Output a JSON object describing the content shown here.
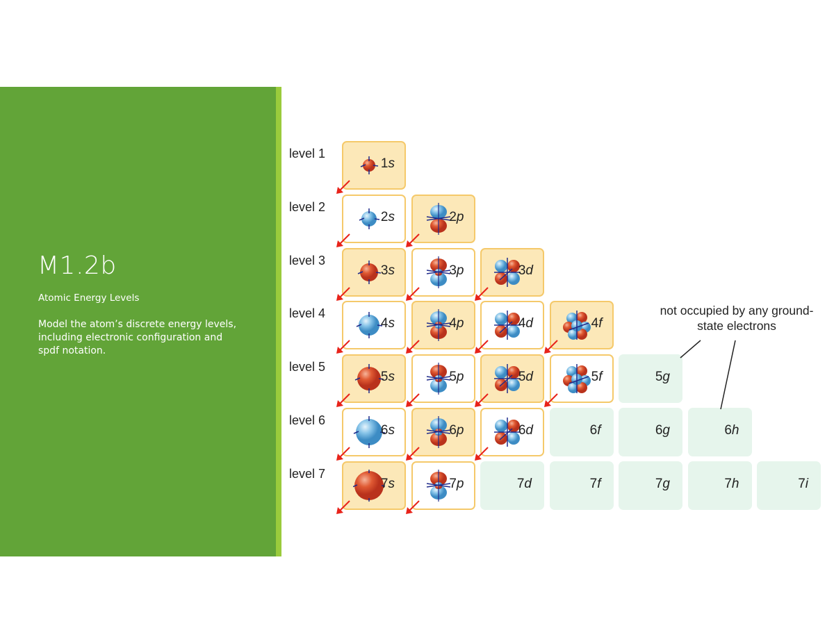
{
  "slide": {
    "title": "M1.2b",
    "subtitle": "Atomic Energy Levels",
    "description": "Model the atom’s discrete energy levels, including electronic configuration and spdf notation.",
    "colors": {
      "panel": "#62a438",
      "accent": "#9acb3c",
      "occupied": "#fce8b8",
      "occupied_border": "#f5c96a",
      "unoccupied": "#e6f5ec",
      "arrow": "#e8231a"
    }
  },
  "diagram": {
    "levels": [
      "level 1",
      "level 2",
      "level 3",
      "level 4",
      "level 5",
      "level 6",
      "level 7"
    ],
    "annotation": "not occupied by any ground-state electrons",
    "rows": [
      [
        {
          "n": "1",
          "l": "s",
          "state": "filled",
          "color": "red"
        }
      ],
      [
        {
          "n": "2",
          "l": "s",
          "state": "white",
          "color": "blue"
        },
        {
          "n": "2",
          "l": "p",
          "state": "filled",
          "color": "mixed"
        }
      ],
      [
        {
          "n": "3",
          "l": "s",
          "state": "filled",
          "color": "red"
        },
        {
          "n": "3",
          "l": "p",
          "state": "white",
          "color": "mixed"
        },
        {
          "n": "3",
          "l": "d",
          "state": "filled",
          "color": "mixed"
        }
      ],
      [
        {
          "n": "4",
          "l": "s",
          "state": "white",
          "color": "blue"
        },
        {
          "n": "4",
          "l": "p",
          "state": "filled",
          "color": "mixed"
        },
        {
          "n": "4",
          "l": "d",
          "state": "white",
          "color": "mixed"
        },
        {
          "n": "4",
          "l": "f",
          "state": "filled",
          "color": "mixed"
        }
      ],
      [
        {
          "n": "5",
          "l": "s",
          "state": "filled",
          "color": "red"
        },
        {
          "n": "5",
          "l": "p",
          "state": "white",
          "color": "mixed"
        },
        {
          "n": "5",
          "l": "d",
          "state": "filled",
          "color": "mixed"
        },
        {
          "n": "5",
          "l": "f",
          "state": "white",
          "color": "mixed"
        },
        {
          "n": "5",
          "l": "g",
          "state": "empty"
        }
      ],
      [
        {
          "n": "6",
          "l": "s",
          "state": "white",
          "color": "blue"
        },
        {
          "n": "6",
          "l": "p",
          "state": "filled",
          "color": "mixed"
        },
        {
          "n": "6",
          "l": "d",
          "state": "white",
          "color": "mixed"
        },
        {
          "n": "6",
          "l": "f",
          "state": "empty"
        },
        {
          "n": "6",
          "l": "g",
          "state": "empty"
        },
        {
          "n": "6",
          "l": "h",
          "state": "empty"
        }
      ],
      [
        {
          "n": "7",
          "l": "s",
          "state": "filled",
          "color": "red"
        },
        {
          "n": "7",
          "l": "p",
          "state": "white",
          "color": "mixed"
        },
        {
          "n": "7",
          "l": "d",
          "state": "empty"
        },
        {
          "n": "7",
          "l": "f",
          "state": "empty"
        },
        {
          "n": "7",
          "l": "g",
          "state": "empty"
        },
        {
          "n": "7",
          "l": "h",
          "state": "empty"
        },
        {
          "n": "7",
          "l": "i",
          "state": "empty"
        }
      ]
    ]
  }
}
